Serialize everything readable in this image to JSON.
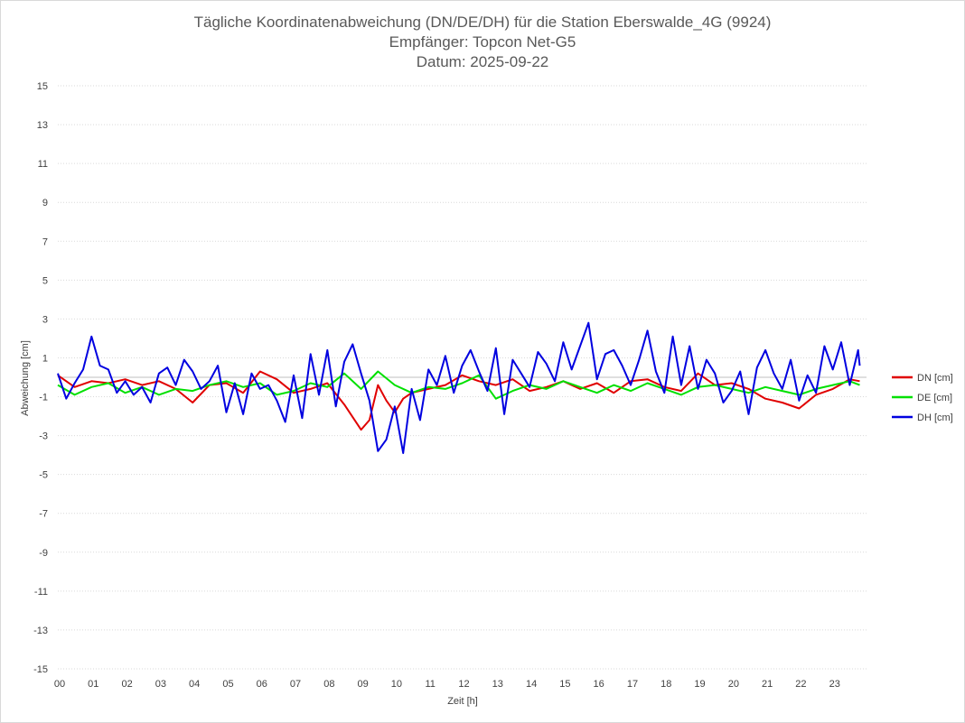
{
  "chart_data": {
    "type": "line",
    "title": [
      "Tägliche Koordinatenabweichung (DN/DE/DH) für die Station Eberswalde_4G (9924)",
      "Empfänger: Topcon Net-G5",
      "Datum: 2025-09-22"
    ],
    "xlabel": "Zeit [h]",
    "ylabel": "Abweichung [cm]",
    "xlim": [
      0,
      24
    ],
    "ylim": [
      -15,
      15
    ],
    "x_tick_labels": [
      "00",
      "01",
      "02",
      "03",
      "04",
      "05",
      "06",
      "07",
      "08",
      "09",
      "10",
      "11",
      "12",
      "13",
      "14",
      "15",
      "16",
      "17",
      "18",
      "19",
      "20",
      "21",
      "22",
      "23"
    ],
    "y_tick_labels": [
      "15",
      "13",
      "11",
      "9",
      "7",
      "5",
      "3",
      "1",
      "-1",
      "-3",
      "-5",
      "-7",
      "-9",
      "-11",
      "-13",
      "-15"
    ],
    "grid": "horizontal-dotted",
    "legend_position": "right",
    "series": [
      {
        "name": "DN [cm]",
        "color": "#e00000",
        "x": [
          0,
          0.5,
          1,
          1.5,
          2,
          2.5,
          3,
          3.5,
          4,
          4.5,
          5,
          5.5,
          6,
          6.5,
          7,
          7.5,
          8,
          8.5,
          9,
          9.25,
          9.5,
          9.75,
          10,
          10.25,
          10.5,
          11,
          11.5,
          12,
          12.5,
          13,
          13.5,
          14,
          14.5,
          15,
          15.5,
          16,
          16.5,
          17,
          17.5,
          18,
          18.5,
          19,
          19.5,
          20,
          20.5,
          21,
          21.5,
          22,
          22.5,
          23,
          23.5,
          23.8
        ],
        "values": [
          0.1,
          -0.5,
          -0.2,
          -0.3,
          -0.1,
          -0.4,
          -0.2,
          -0.6,
          -1.3,
          -0.4,
          -0.3,
          -0.8,
          0.3,
          -0.1,
          -0.8,
          -0.6,
          -0.3,
          -1.4,
          -2.7,
          -2.2,
          -0.4,
          -1.2,
          -1.8,
          -1.1,
          -0.8,
          -0.6,
          -0.4,
          0.1,
          -0.2,
          -0.4,
          -0.1,
          -0.7,
          -0.5,
          -0.2,
          -0.6,
          -0.3,
          -0.8,
          -0.2,
          -0.1,
          -0.5,
          -0.7,
          0.2,
          -0.4,
          -0.3,
          -0.6,
          -1.1,
          -1.3,
          -1.6,
          -0.9,
          -0.6,
          -0.1,
          -0.2
        ]
      },
      {
        "name": "DE [cm]",
        "color": "#00e000",
        "x": [
          0,
          0.5,
          1,
          1.5,
          2,
          2.5,
          3,
          3.5,
          4,
          4.5,
          5,
          5.5,
          6,
          6.5,
          7,
          7.5,
          8,
          8.5,
          9,
          9.5,
          10,
          10.5,
          11,
          11.5,
          12,
          12.5,
          13,
          13.5,
          14,
          14.5,
          15,
          15.5,
          16,
          16.5,
          17,
          17.5,
          18,
          18.5,
          19,
          19.5,
          20,
          20.5,
          21,
          21.5,
          22,
          22.5,
          23,
          23.5,
          23.8
        ],
        "values": [
          -0.4,
          -0.9,
          -0.5,
          -0.3,
          -0.8,
          -0.5,
          -0.9,
          -0.6,
          -0.7,
          -0.4,
          -0.2,
          -0.5,
          -0.3,
          -0.9,
          -0.7,
          -0.3,
          -0.5,
          0.2,
          -0.6,
          0.3,
          -0.4,
          -0.8,
          -0.5,
          -0.6,
          -0.3,
          0.1,
          -1.1,
          -0.7,
          -0.4,
          -0.6,
          -0.2,
          -0.5,
          -0.8,
          -0.4,
          -0.7,
          -0.3,
          -0.6,
          -0.9,
          -0.5,
          -0.4,
          -0.6,
          -0.8,
          -0.5,
          -0.7,
          -0.9,
          -0.6,
          -0.4,
          -0.2,
          -0.4
        ]
      },
      {
        "name": "DH [cm]",
        "color": "#0000e0",
        "x": [
          0,
          0.25,
          0.5,
          0.75,
          1,
          1.25,
          1.5,
          1.75,
          2,
          2.25,
          2.5,
          2.75,
          3,
          3.25,
          3.5,
          3.75,
          4,
          4.25,
          4.5,
          4.75,
          5,
          5.25,
          5.5,
          5.75,
          6,
          6.25,
          6.5,
          6.75,
          7,
          7.25,
          7.5,
          7.75,
          8,
          8.25,
          8.5,
          8.75,
          9,
          9.25,
          9.5,
          9.75,
          10,
          10.25,
          10.5,
          10.75,
          11,
          11.25,
          11.5,
          11.75,
          12,
          12.25,
          12.5,
          12.75,
          13,
          13.25,
          13.5,
          13.75,
          14,
          14.25,
          14.5,
          14.75,
          15,
          15.25,
          15.5,
          15.75,
          16,
          16.25,
          16.5,
          16.75,
          17,
          17.25,
          17.5,
          17.75,
          18,
          18.25,
          18.5,
          18.75,
          19,
          19.25,
          19.5,
          19.75,
          20,
          20.25,
          20.5,
          20.75,
          21,
          21.25,
          21.5,
          21.75,
          22,
          22.25,
          22.5,
          22.75,
          23,
          23.25,
          23.5,
          23.75,
          23.8
        ],
        "values": [
          0.2,
          -1.1,
          -0.3,
          0.4,
          2.1,
          0.6,
          0.4,
          -0.8,
          -0.2,
          -0.9,
          -0.5,
          -1.3,
          0.2,
          0.5,
          -0.4,
          0.9,
          0.3,
          -0.6,
          -0.2,
          0.6,
          -1.8,
          -0.3,
          -1.9,
          0.2,
          -0.6,
          -0.4,
          -1.2,
          -2.3,
          0.1,
          -2.1,
          1.2,
          -0.9,
          1.4,
          -1.5,
          0.8,
          1.7,
          0.2,
          -1.2,
          -3.8,
          -3.2,
          -1.5,
          -3.9,
          -0.6,
          -2.2,
          0.4,
          -0.4,
          1.1,
          -0.8,
          0.6,
          1.4,
          0.3,
          -0.7,
          1.5,
          -1.9,
          0.9,
          0.2,
          -0.5,
          1.3,
          0.7,
          -0.2,
          1.8,
          0.4,
          1.6,
          2.8,
          -0.1,
          1.2,
          1.4,
          0.6,
          -0.4,
          0.9,
          2.4,
          0.3,
          -0.8,
          2.1,
          -0.4,
          1.6,
          -0.6,
          0.9,
          0.2,
          -1.3,
          -0.7,
          0.3,
          -1.9,
          0.5,
          1.4,
          0.2,
          -0.6,
          0.9,
          -1.2,
          0.1,
          -0.8,
          1.6,
          0.4,
          1.8,
          -0.4,
          1.4,
          0.6
        ]
      }
    ]
  }
}
